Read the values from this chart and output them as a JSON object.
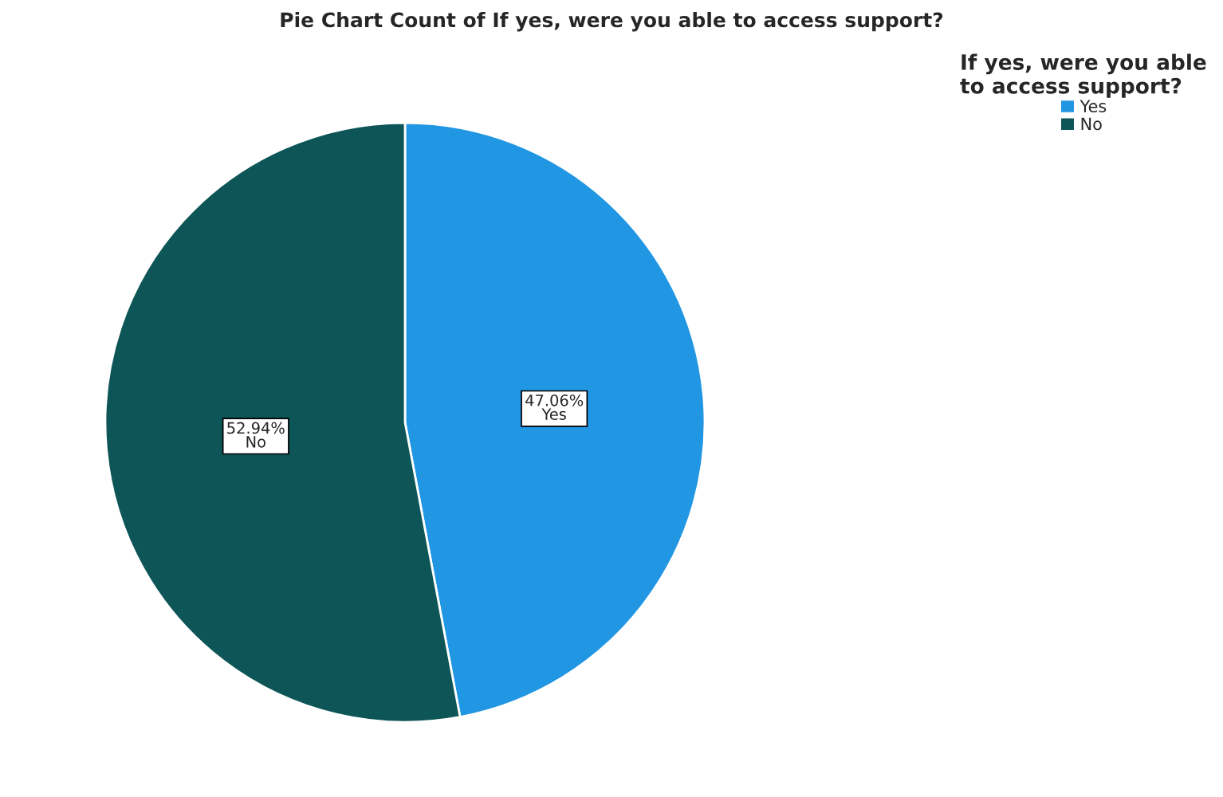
{
  "chart_data": {
    "type": "pie",
    "title": "Pie Chart Count of If yes, were you able to access support?",
    "categories": [
      "Yes",
      "No"
    ],
    "values": [
      47.06,
      52.94
    ],
    "colors": [
      "#2196e3",
      "#0d5557"
    ],
    "value_labels": [
      "47.06%\nYes",
      "52.94%\nNo"
    ],
    "legend_title": "If yes, were you able\nto access support?",
    "legend": "top right"
  }
}
